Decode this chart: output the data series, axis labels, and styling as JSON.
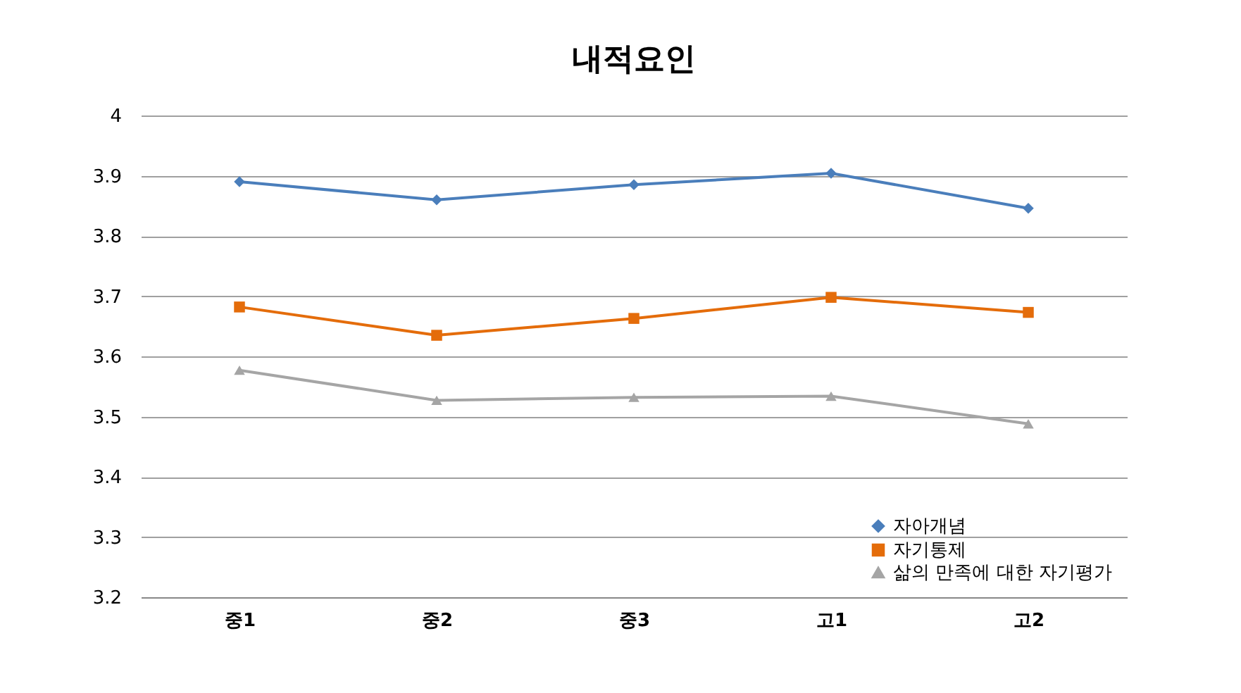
{
  "chart_data": {
    "type": "line",
    "title": "내적요인",
    "categories": [
      "중1",
      "중2",
      "중3",
      "고1",
      "고2"
    ],
    "series": [
      {
        "name": "자아개념",
        "color": "#4a7ebb",
        "marker": "diamond",
        "values": [
          3.89,
          3.86,
          3.885,
          3.904,
          3.846
        ]
      },
      {
        "name": "자기통제",
        "color": "#e46c0a",
        "marker": "square",
        "values": [
          3.682,
          3.635,
          3.663,
          3.698,
          3.673
        ]
      },
      {
        "name": "삶의 만족에 대한 자기평가",
        "color": "#a5a5a5",
        "marker": "triangle",
        "values": [
          3.577,
          3.527,
          3.532,
          3.534,
          3.488
        ]
      }
    ],
    "ylim": [
      3.2,
      4
    ],
    "yticks": [
      3.2,
      3.3,
      3.4,
      3.5,
      3.6,
      3.7,
      3.8,
      3.9,
      4
    ],
    "grid": "y",
    "legend": "bottom right",
    "line_style": "solid"
  }
}
